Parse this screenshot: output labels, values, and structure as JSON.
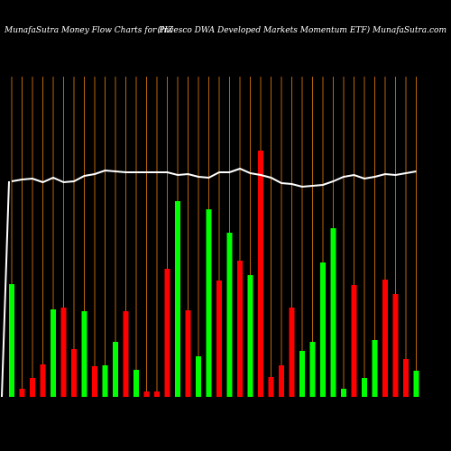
{
  "chart_data": {
    "type": "bar",
    "title": "MunafaSutra  Money Flow  Charts for PIZ",
    "subtitle": "(Invesco  DWA Developed Markets Momentum ETF) MunafaSutra.com",
    "categories": [
      null,
      null,
      null,
      null,
      null,
      null,
      null,
      null,
      null,
      null,
      null,
      null,
      null,
      null,
      null,
      null,
      null,
      null,
      null,
      null,
      null,
      null,
      null,
      null,
      null,
      null,
      null,
      null,
      null,
      null,
      null,
      null,
      null,
      null,
      null,
      null,
      null,
      null,
      null,
      null
    ],
    "values": [
      125,
      9,
      21,
      36,
      97,
      99,
      53,
      95,
      34,
      35,
      61,
      95,
      30,
      6,
      6,
      142,
      217,
      96,
      45,
      208,
      129,
      182,
      151,
      135,
      273,
      22,
      35,
      99,
      51,
      61,
      149,
      187,
      9,
      124,
      21,
      63,
      130,
      114,
      42,
      29
    ],
    "colors": [
      "#00ff00",
      "#ff0000",
      "#ff0000",
      "#ff0000",
      "#00ff00",
      "#ff0000",
      "#ff0000",
      "#00ff00",
      "#ff0000",
      "#00ff00",
      "#00ff00",
      "#ff0000",
      "#00ff00",
      "#ff0000",
      "#ff0000",
      "#ff0000",
      "#00ff00",
      "#ff0000",
      "#00ff00",
      "#00ff00",
      "#ff0000",
      "#00ff00",
      "#ff0000",
      "#00ff00",
      "#ff0000",
      "#ff0000",
      "#ff0000",
      "#ff0000",
      "#00ff00",
      "#00ff00",
      "#00ff00",
      "#00ff00",
      "#00ff00",
      "#ff0000",
      "#00ff00",
      "#00ff00",
      "#ff0000",
      "#ff0000",
      "#ff0000",
      "#00ff00"
    ],
    "line": {
      "color": "#ffffff",
      "values": [
        239,
        241,
        242,
        238,
        243,
        238,
        239,
        245,
        247,
        251,
        250,
        249,
        249,
        249,
        249,
        249,
        246,
        247,
        244,
        243,
        249,
        249,
        253,
        248,
        246,
        243,
        237,
        236,
        233,
        234,
        235,
        239,
        244,
        246,
        242,
        244,
        247,
        246,
        248,
        250
      ]
    },
    "ylim": [
      0,
      300
    ],
    "grid": true,
    "grid_color": "#b8650a"
  }
}
